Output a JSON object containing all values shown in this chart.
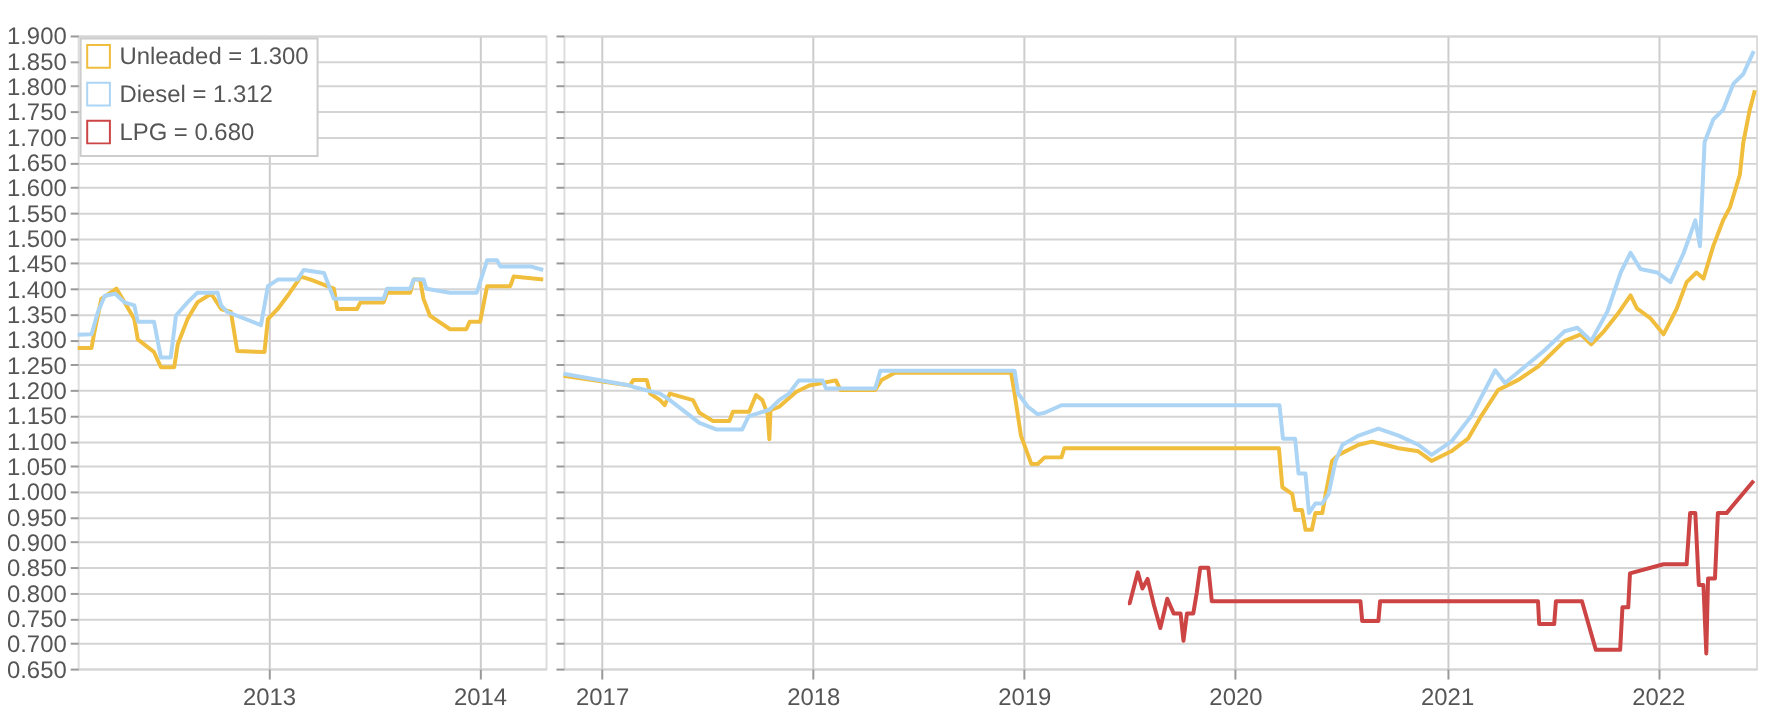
{
  "chart_data": [
    {
      "type": "line",
      "xlim": [
        "2012-02-06",
        "2014-04-25"
      ],
      "xticks": [
        "2013",
        "2014"
      ],
      "ylim": [
        0.65,
        1.9
      ],
      "yticks": [
        {
          "value": 0.65,
          "label": "0.650"
        },
        {
          "value": 0.7,
          "label": "0.700"
        },
        {
          "value": 0.75,
          "label": "0.750"
        },
        {
          "value": 0.8,
          "label": "0.800"
        },
        {
          "value": 0.85,
          "label": "0.850"
        },
        {
          "value": 0.9,
          "label": "0.900"
        },
        {
          "value": 0.95,
          "label": "0.950"
        },
        {
          "value": 1.0,
          "label": "1.000"
        },
        {
          "value": 1.05,
          "label": "1.050"
        },
        {
          "value": 1.1,
          "label": "1.100"
        },
        {
          "value": 1.15,
          "label": "1.150"
        },
        {
          "value": 1.2,
          "label": "1.200"
        },
        {
          "value": 1.25,
          "label": "1.250"
        },
        {
          "value": 1.3,
          "label": "1.300"
        },
        {
          "value": 1.35,
          "label": "1.350"
        },
        {
          "value": 1.4,
          "label": "1.400"
        },
        {
          "value": 1.45,
          "label": "1.450"
        },
        {
          "value": 1.5,
          "label": "1.500"
        },
        {
          "value": 1.55,
          "label": "1.550"
        },
        {
          "value": 1.6,
          "label": "1.600"
        },
        {
          "value": 1.65,
          "label": "1.650"
        },
        {
          "value": 1.7,
          "label": "1.700"
        },
        {
          "value": 1.75,
          "label": "1.750"
        },
        {
          "value": 1.8,
          "label": "1.800"
        },
        {
          "value": 1.85,
          "label": "1.850"
        },
        {
          "value": 1.9,
          "label": "1.900"
        }
      ],
      "grid": true,
      "legend": "top left",
      "series": [
        {
          "name": "Unleaded = 1.300",
          "color": "#f0be3c",
          "x": [
            "2012-02-06",
            "2012-03-01",
            "2012-03-06",
            "2012-03-18",
            "2012-04-13",
            "2012-04-21",
            "2012-05-14",
            "2012-05-20",
            "2012-06-17",
            "2012-06-29",
            "2012-07-22",
            "2012-07-28",
            "2012-08-14",
            "2012-08-31",
            "2012-09-24",
            "2012-10-11",
            "2012-10-28",
            "2012-11-08",
            "2012-12-25",
            "2012-12-31",
            "2013-01-17",
            "2013-02-03",
            "2013-02-26",
            "2013-03-15",
            "2013-04-24",
            "2013-04-30",
            "2013-06-03",
            "2013-06-09",
            "2013-07-19",
            "2013-07-25",
            "2013-09-03",
            "2013-09-09",
            "2013-09-20",
            "2013-09-26",
            "2013-10-07",
            "2013-11-11",
            "2013-12-09",
            "2013-12-15",
            "2014-01-02",
            "2014-01-14",
            "2014-02-23",
            "2014-03-01",
            "2014-04-21"
          ],
          "values": [
            1.283,
            1.283,
            1.315,
            1.38,
            1.4,
            1.385,
            1.34,
            1.3,
            1.275,
            1.245,
            1.245,
            1.29,
            1.34,
            1.373,
            1.39,
            1.36,
            1.354,
            1.277,
            1.275,
            1.34,
            1.36,
            1.386,
            1.424,
            1.418,
            1.4,
            1.36,
            1.36,
            1.373,
            1.373,
            1.392,
            1.392,
            1.418,
            1.418,
            1.38,
            1.347,
            1.32,
            1.32,
            1.335,
            1.335,
            1.405,
            1.405,
            1.424,
            1.418
          ]
        },
        {
          "name": "Diesel = 1.312",
          "color": "#acd5f5",
          "x": [
            "2012-02-06",
            "2012-03-01",
            "2012-03-12",
            "2012-03-24",
            "2012-04-11",
            "2012-04-27",
            "2012-05-14",
            "2012-05-20",
            "2012-06-17",
            "2012-06-29",
            "2012-07-16",
            "2012-07-25",
            "2012-08-14",
            "2012-08-31",
            "2012-10-05",
            "2012-10-11",
            "2012-10-22",
            "2012-12-19",
            "2012-12-31",
            "2013-01-17",
            "2013-02-20",
            "2013-03-03",
            "2013-04-07",
            "2013-04-24",
            "2013-07-19",
            "2013-07-25",
            "2013-09-03",
            "2013-09-09",
            "2013-09-26",
            "2013-10-01",
            "2013-11-11",
            "2013-12-27",
            "2014-01-14",
            "2014-01-31",
            "2014-02-06",
            "2014-03-30",
            "2014-04-21"
          ],
          "values": [
            1.309,
            1.31,
            1.354,
            1.386,
            1.39,
            1.373,
            1.367,
            1.335,
            1.335,
            1.264,
            1.264,
            1.347,
            1.373,
            1.392,
            1.392,
            1.367,
            1.354,
            1.328,
            1.405,
            1.418,
            1.418,
            1.437,
            1.431,
            1.38,
            1.38,
            1.4,
            1.4,
            1.418,
            1.418,
            1.4,
            1.392,
            1.392,
            1.456,
            1.456,
            1.444,
            1.444,
            1.437
          ]
        },
        {
          "name": "LPG = 0.680",
          "color": "#cc4444"
        }
      ]
    },
    {
      "type": "line",
      "xlim": [
        "2016-10-27",
        "2022-06-20"
      ],
      "xticks": [
        "2017",
        "2018",
        "2019",
        "2020",
        "2021",
        "2022"
      ],
      "ylim": [
        0.65,
        1.9
      ],
      "yticks": [
        0.65,
        0.7,
        0.75,
        0.8,
        0.85,
        0.9,
        0.95,
        1.0,
        1.05,
        1.1,
        1.15,
        1.2,
        1.25,
        1.3,
        1.35,
        1.4,
        1.45,
        1.5,
        1.55,
        1.6,
        1.65,
        1.7,
        1.75,
        1.8,
        1.85,
        1.9
      ],
      "grid": true,
      "tick_labels": "x",
      "series": [
        {
          "color": "#f0be3c",
          "x": [
            "2016-10-27",
            "2017-02-19",
            "2017-02-25",
            "2017-03-20",
            "2017-03-26",
            "2017-04-12",
            "2017-04-20",
            "2017-04-29",
            "2017-06-08",
            "2017-06-19",
            "2017-07-12",
            "2017-08-10",
            "2017-08-16",
            "2017-09-13",
            "2017-09-25",
            "2017-10-06",
            "2017-10-15",
            "2017-10-18",
            "2017-10-20",
            "2017-11-04",
            "2017-12-03",
            "2017-12-26",
            "2018-02-10",
            "2018-02-18",
            "2018-04-19",
            "2018-04-30",
            "2018-05-23",
            "2018-12-10",
            "2018-12-16",
            "2018-12-27",
            "2019-01-14",
            "2019-01-25",
            "2019-02-06",
            "2019-03-07",
            "2019-03-12",
            "2020-03-17",
            "2020-03-23",
            "2020-04-09",
            "2020-04-14",
            "2020-04-26",
            "2020-05-02",
            "2020-05-13",
            "2020-05-19",
            "2020-05-31",
            "2020-06-06",
            "2020-06-17",
            "2020-06-28",
            "2020-08-02",
            "2020-08-25",
            "2020-09-17",
            "2020-10-10",
            "2020-11-13",
            "2020-12-06",
            "2021-01-09",
            "2021-02-07",
            "2021-03-02",
            "2021-03-31",
            "2021-05-05",
            "2021-06-08",
            "2021-07-24",
            "2021-08-21",
            "2021-09-08",
            "2021-09-30",
            "2021-10-23",
            "2021-11-15",
            "2021-11-26",
            "2021-12-19",
            "2022-01-11",
            "2022-02-03",
            "2022-02-20",
            "2022-03-09",
            "2022-03-21",
            "2022-04-07",
            "2022-04-24",
            "2022-05-06",
            "2022-05-23",
            "2022-05-29",
            "2022-06-09",
            "2022-06-18"
          ],
          "values": [
            1.228,
            1.209,
            1.22,
            1.22,
            1.193,
            1.18,
            1.17,
            1.193,
            1.18,
            1.155,
            1.139,
            1.139,
            1.157,
            1.157,
            1.19,
            1.18,
            1.152,
            1.103,
            1.16,
            1.167,
            1.196,
            1.209,
            1.219,
            1.2,
            1.2,
            1.22,
            1.234,
            1.234,
            1.193,
            1.11,
            1.054,
            1.054,
            1.067,
            1.067,
            1.085,
            1.085,
            1.008,
            0.995,
            0.963,
            0.963,
            0.924,
            0.924,
            0.957,
            0.957,
            0.995,
            1.06,
            1.072,
            1.092,
            1.098,
            1.092,
            1.085,
            1.079,
            1.06,
            1.079,
            1.104,
            1.149,
            1.2,
            1.22,
            1.246,
            1.297,
            1.31,
            1.29,
            1.316,
            1.349,
            1.387,
            1.361,
            1.342,
            1.31,
            1.361,
            1.413,
            1.432,
            1.42,
            1.484,
            1.535,
            1.561,
            1.625,
            1.689,
            1.753,
            1.792
          ]
        },
        {
          "color": "#acd5f5",
          "x": [
            "2016-10-27",
            "2017-02-19",
            "2017-02-25",
            "2017-04-12",
            "2017-04-29",
            "2017-06-19",
            "2017-07-19",
            "2017-09-01",
            "2017-09-12",
            "2017-10-18",
            "2017-11-04",
            "2017-11-21",
            "2017-12-08",
            "2018-01-18",
            "2018-01-24",
            "2018-04-19",
            "2018-04-28",
            "2018-12-16",
            "2018-12-22",
            "2019-01-08",
            "2019-01-25",
            "2019-02-06",
            "2019-03-07",
            "2020-03-18",
            "2020-03-24",
            "2020-04-14",
            "2020-04-20",
            "2020-05-02",
            "2020-05-08",
            "2020-05-19",
            "2020-05-31",
            "2020-06-11",
            "2020-06-23",
            "2020-07-05",
            "2020-08-02",
            "2020-09-05",
            "2020-10-10",
            "2020-11-13",
            "2020-12-06",
            "2021-01-09",
            "2021-02-13",
            "2021-03-26",
            "2021-04-12",
            "2021-05-16",
            "2021-06-19",
            "2021-07-24",
            "2021-08-15",
            "2021-09-08",
            "2021-10-06",
            "2021-10-29",
            "2021-11-15",
            "2021-12-02",
            "2021-12-31",
            "2022-01-23",
            "2022-02-15",
            "2022-03-07",
            "2022-03-15",
            "2022-03-23",
            "2022-04-07",
            "2022-04-24",
            "2022-05-12",
            "2022-05-29",
            "2022-06-16"
          ],
          "values": [
            1.232,
            1.209,
            1.206,
            1.193,
            1.18,
            1.135,
            1.122,
            1.122,
            1.148,
            1.161,
            1.18,
            1.193,
            1.219,
            1.219,
            1.203,
            1.203,
            1.238,
            1.238,
            1.193,
            1.167,
            1.152,
            1.155,
            1.17,
            1.17,
            1.104,
            1.104,
            1.035,
            1.035,
            0.957,
            0.976,
            0.976,
            0.995,
            1.06,
            1.092,
            1.11,
            1.124,
            1.11,
            1.092,
            1.072,
            1.098,
            1.149,
            1.239,
            1.214,
            1.246,
            1.278,
            1.316,
            1.323,
            1.297,
            1.355,
            1.432,
            1.471,
            1.439,
            1.432,
            1.413,
            1.471,
            1.535,
            1.484,
            1.689,
            1.734,
            1.753,
            1.805,
            1.824,
            1.869
          ]
        },
        {
          "color": "#cc4444",
          "x": [
            "2019-06-30",
            "2019-07-03",
            "2019-07-17",
            "2019-07-25",
            "2019-08-03",
            "2019-08-14",
            "2019-08-25",
            "2019-09-06",
            "2019-09-17",
            "2019-09-29",
            "2019-10-04",
            "2019-10-10",
            "2019-10-21",
            "2019-10-27",
            "2019-11-02",
            "2019-11-16",
            "2019-11-22",
            "2020-08-05",
            "2020-08-08",
            "2020-09-05",
            "2020-09-08",
            "2021-06-08",
            "2021-06-10",
            "2021-07-06",
            "2021-07-09",
            "2021-08-23",
            "2021-09-16",
            "2021-10-28",
            "2021-11-01",
            "2021-11-11",
            "2021-11-14",
            "2022-01-11",
            "2022-02-20",
            "2022-02-26",
            "2022-03-07",
            "2022-03-13",
            "2022-03-21",
            "2022-03-26",
            "2022-03-29",
            "2022-04-10",
            "2022-04-15",
            "2022-04-30",
            "2022-06-16"
          ],
          "values": [
            0.779,
            0.779,
            0.84,
            0.808,
            0.827,
            0.775,
            0.73,
            0.788,
            0.759,
            0.759,
            0.705,
            0.759,
            0.759,
            0.8,
            0.849,
            0.849,
            0.783,
            0.783,
            0.744,
            0.744,
            0.783,
            0.783,
            0.738,
            0.738,
            0.783,
            0.783,
            0.687,
            0.687,
            0.771,
            0.771,
            0.838,
            0.856,
            0.856,
            0.957,
            0.957,
            0.815,
            0.815,
            0.68,
            0.828,
            0.828,
            0.957,
            0.957,
            1.021
          ]
        }
      ]
    }
  ]
}
